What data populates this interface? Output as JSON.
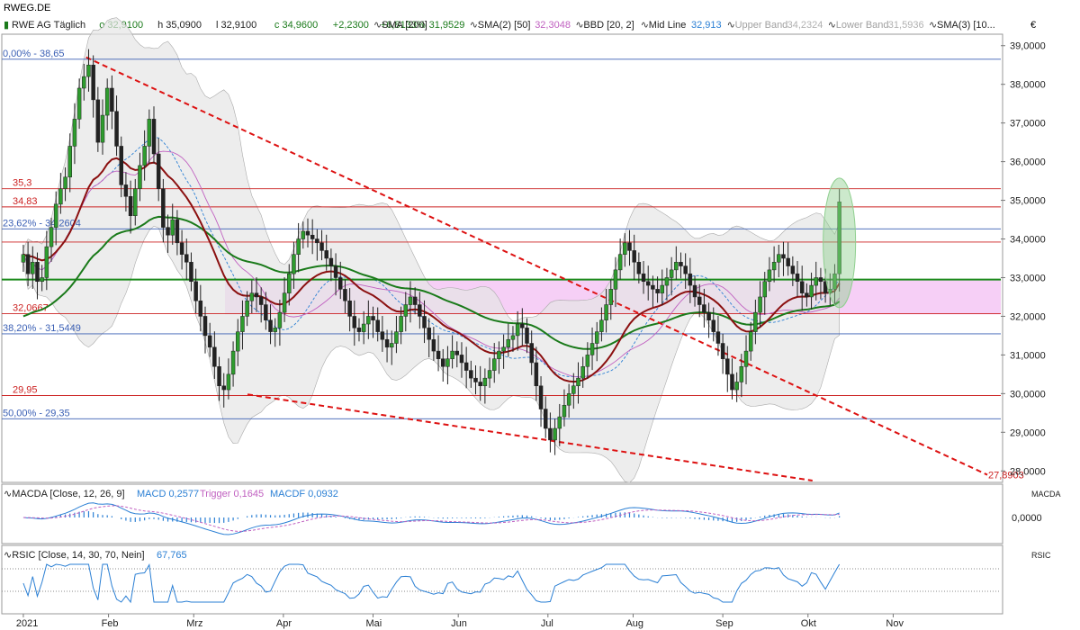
{
  "chart_data": {
    "type": "candlestick",
    "symbol": "RWEG.DE",
    "header": {
      "name": "RWE AG Täglich",
      "open": "o 32,9100",
      "high": "h 35,0900",
      "low": "l 32,9100",
      "close": "c 34,9600",
      "change": "+2,2300",
      "change_pct": "+6,8133%"
    },
    "indicators": [
      {
        "label": "SMA [200]",
        "value": "31,9529",
        "color": "#1a7a1a"
      },
      {
        "label": "SMA(2) [50]",
        "value": "32,3048",
        "color": "#c060c0"
      },
      {
        "label": "BBD [20, 2]",
        "value": "",
        "color": "#333333"
      },
      {
        "label": "Mid Line",
        "value": "32,913",
        "color": "#2a7fd4"
      },
      {
        "label": "Upper Band",
        "value": "34,2324",
        "color": "#b0b0b0"
      },
      {
        "label": "Lower Band",
        "value": "31,5936",
        "color": "#b0b0b0"
      },
      {
        "label": "SMA(3) [10...",
        "value": "",
        "color": "#333333"
      }
    ],
    "currency": "€",
    "price_axis": {
      "min": 27.75,
      "max": 39.25,
      "ticks": [
        "39,0000",
        "38,0000",
        "37,0000",
        "36,0000",
        "35,0000",
        "34,0000",
        "33,0000",
        "32,0000",
        "31,0000",
        "30,0000",
        "29,0000",
        "28,0000"
      ],
      "tick_values": [
        39,
        38,
        37,
        36,
        35,
        34,
        33,
        32,
        31,
        30,
        29,
        28
      ]
    },
    "months": [
      "2021",
      "Feb",
      "Mrz",
      "Apr",
      "Mai",
      "Jun",
      "Jul",
      "Aug",
      "Sep",
      "Okt",
      "Nov"
    ],
    "month_days": [
      4,
      23,
      42,
      62,
      82,
      101,
      121,
      140,
      160,
      179,
      198
    ],
    "total_days": 222,
    "levels": [
      {
        "value": 38.65,
        "label": "0,00% - 38,65",
        "color": "#3a5fb4"
      },
      {
        "value": 35.3,
        "label": "35,3",
        "color": "#cc2222"
      },
      {
        "value": 34.83,
        "label": "34,83",
        "color": "#cc2222"
      },
      {
        "value": 34.2604,
        "label": "23,62% - 34,2604",
        "color": "#3a5fb4"
      },
      {
        "value": 33.92,
        "label": "",
        "color": "#cc2222"
      },
      {
        "value": 32.0667,
        "label": "32,0667",
        "color": "#cc2222"
      },
      {
        "value": 31.5449,
        "label": "38,20% - 31,5449",
        "color": "#3a5fb4"
      },
      {
        "value": 29.95,
        "label": "29,95",
        "color": "#cc2222"
      },
      {
        "value": 29.35,
        "label": "50,00% - 29,35",
        "color": "#3a5fb4"
      }
    ],
    "support_level": 32.95,
    "zone": {
      "from": 32.05,
      "to": 32.95
    },
    "trendlines": [
      {
        "from": [
          18,
          38.7
        ],
        "to": [
          179,
          27.9
        ],
        "label": "27,8903"
      },
      {
        "from": [
          54,
          29.98
        ],
        "to": [
          180,
          27.75
        ],
        "label": ""
      }
    ],
    "closes": [
      33.6,
      33.1,
      33.4,
      32.9,
      33.0,
      33.8,
      34.3,
      34.9,
      35.3,
      35.6,
      36.4,
      37.1,
      37.9,
      38.2,
      38.5,
      37.6,
      36.5,
      37.2,
      37.9,
      37.3,
      36.4,
      35.4,
      35.1,
      34.6,
      35.3,
      35.9,
      36.4,
      37.1,
      36.2,
      35.3,
      34.3,
      34.1,
      34.5,
      33.9,
      33.6,
      33.4,
      32.9,
      32.4,
      32.0,
      31.5,
      31.2,
      30.7,
      30.2,
      30.1,
      30.5,
      31.1,
      31.6,
      32.0,
      32.4,
      32.6,
      32.5,
      32.3,
      31.9,
      31.6,
      31.7,
      32.1,
      32.6,
      33.1,
      33.6,
      34.0,
      34.2,
      34.1,
      34.0,
      33.9,
      33.7,
      33.5,
      33.3,
      33.0,
      32.7,
      32.4,
      32.0,
      31.7,
      31.6,
      31.8,
      32.0,
      31.9,
      31.6,
      31.4,
      31.2,
      31.3,
      31.6,
      32.0,
      32.3,
      32.5,
      32.3,
      32.0,
      31.7,
      31.4,
      31.1,
      30.9,
      30.7,
      30.9,
      31.1,
      31.0,
      30.8,
      30.6,
      30.4,
      30.3,
      30.2,
      30.4,
      30.6,
      30.9,
      31.1,
      31.2,
      31.4,
      31.5,
      31.8,
      31.7,
      31.3,
      30.8,
      30.2,
      29.6,
      29.1,
      28.8,
      29.1,
      29.4,
      29.7,
      30.0,
      30.2,
      30.4,
      30.7,
      31.0,
      31.3,
      31.6,
      31.9,
      32.3,
      32.7,
      33.2,
      33.6,
      33.9,
      33.7,
      33.4,
      33.1,
      32.9,
      32.8,
      32.7,
      32.6,
      32.8,
      33.0,
      33.2,
      33.4,
      33.3,
      33.1,
      32.8,
      32.5,
      32.3,
      32.1,
      31.9,
      31.6,
      31.3,
      30.9,
      30.5,
      30.1,
      30.3,
      30.7,
      31.1,
      31.6,
      32.1,
      32.5,
      32.9,
      33.2,
      33.4,
      33.6,
      33.5,
      33.3,
      33.1,
      32.9,
      32.6,
      32.5,
      32.8,
      33.0,
      32.9,
      32.6,
      32.7,
      33.1,
      34.96
    ],
    "macd": {
      "label": "MACDA [Close, 12, 26, 9]",
      "macd": "MACD 0,2577",
      "trigger": "Trigger 0,1645",
      "macdf": "MACDF 0,0932",
      "axis_label": "MACDA",
      "zero_label": "0,0000"
    },
    "rsi": {
      "label": "RSIC [Close, 14, 30, 70, Nein]",
      "value": "67,765",
      "axis_label": "RSIC"
    }
  }
}
